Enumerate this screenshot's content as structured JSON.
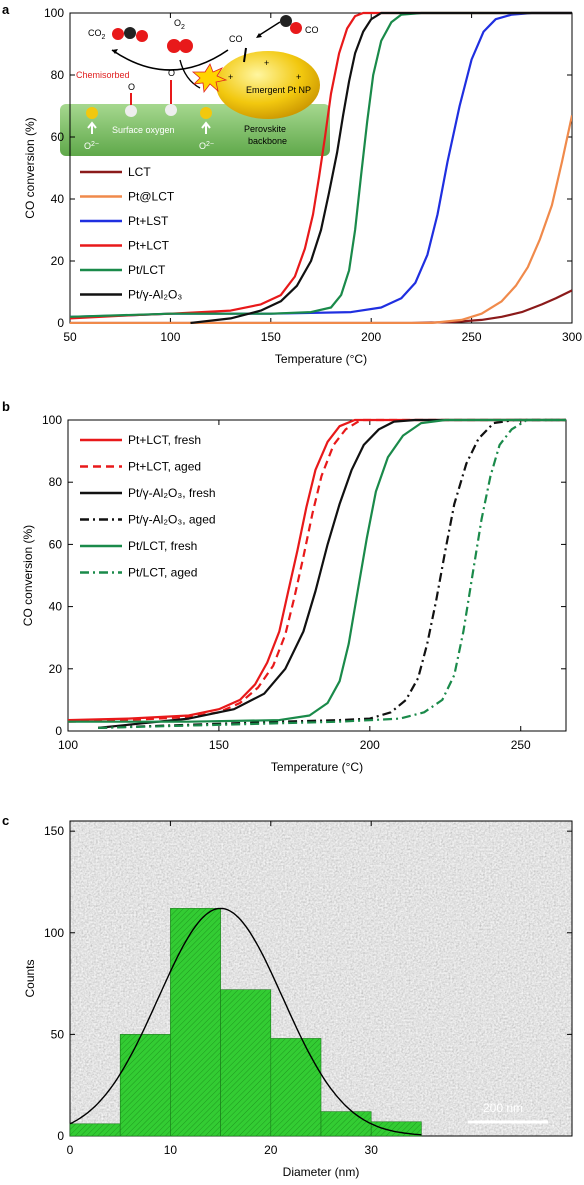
{
  "panels": {
    "a": {
      "letter": "a"
    },
    "b": {
      "letter": "b"
    },
    "c": {
      "letter": "c"
    }
  },
  "schematic": {
    "co2": "CO",
    "co2_sub": "2",
    "o2": "O",
    "o2_sub": "2",
    "co_left": "CO",
    "co_right": "CO",
    "chemisorbed": "Chemisorbed",
    "o_left": "O",
    "o_right": "O",
    "emergent": "Emergent Pt NP",
    "surface_oxygen": "Surface oxygen",
    "perovskite": "Perovskite",
    "backbone": "backbone",
    "o2minus_left": "O",
    "o2minus_right": "O",
    "o2minus_sup": "2−",
    "plus": "+",
    "colors": {
      "nanoparticle": "#f2c80f",
      "backbone": "#7fbf6a",
      "chemisorbed_text": "#e02020",
      "flash": "#ffd400"
    }
  },
  "scale_bar": {
    "label": "200 nm"
  },
  "chart_data": [
    {
      "type": "line",
      "panel": "a",
      "xlabel": "Temperature (°C)",
      "ylabel": "CO conversion (%)",
      "xlim": [
        50,
        300
      ],
      "ylim": [
        0,
        100
      ],
      "xticks": [
        50,
        100,
        150,
        200,
        250,
        300
      ],
      "yticks": [
        0,
        20,
        40,
        60,
        80,
        100
      ],
      "legend_position": "left",
      "series": [
        {
          "name": "LCT",
          "color": "#8b1a1a",
          "dash": "solid",
          "x": [
            50,
            100,
            150,
            200,
            220,
            240,
            255,
            265,
            275,
            285,
            292,
            300
          ],
          "y": [
            0,
            0,
            0,
            0,
            0,
            0.3,
            1.0,
            2.0,
            3.5,
            6.0,
            8.0,
            10.5
          ]
        },
        {
          "name": "Pt@LCT",
          "color": "#f08a4b",
          "dash": "solid",
          "x": [
            50,
            150,
            200,
            230,
            245,
            255,
            265,
            272,
            278,
            284,
            290,
            295,
            300
          ],
          "y": [
            0,
            0,
            0,
            0,
            1,
            3,
            7,
            12,
            18,
            27,
            38,
            52,
            67
          ]
        },
        {
          "name": "Pt+LST",
          "color": "#1f2fe0",
          "dash": "solid",
          "x": [
            50,
            80,
            100,
            150,
            190,
            205,
            215,
            222,
            228,
            233,
            238,
            244,
            250,
            256,
            262,
            270,
            280,
            300
          ],
          "y": [
            2,
            2.5,
            3,
            3,
            3.5,
            5,
            8,
            13,
            22,
            35,
            52,
            70,
            85,
            94,
            98,
            99.5,
            100,
            100
          ]
        },
        {
          "name": "Pt+LCT",
          "color": "#e8191a",
          "dash": "solid",
          "x": [
            50,
            80,
            100,
            130,
            145,
            155,
            162,
            167,
            171,
            174,
            177,
            180,
            184,
            188,
            192,
            196,
            205,
            300
          ],
          "y": [
            1.5,
            2.5,
            3,
            4,
            6,
            9,
            15,
            24,
            35,
            47,
            60,
            74,
            87,
            95,
            99,
            100,
            100,
            100
          ]
        },
        {
          "name": "Pt/LCT",
          "color": "#1a8a4a",
          "dash": "solid",
          "x": [
            50,
            100,
            150,
            170,
            180,
            185,
            189,
            192,
            195,
            198,
            201,
            205,
            210,
            215,
            225,
            300
          ],
          "y": [
            2,
            3,
            3,
            3.5,
            5,
            9,
            17,
            30,
            48,
            65,
            80,
            91,
            97,
            99.5,
            100,
            100
          ]
        },
        {
          "name": "Pt/γ-Al₂O₃",
          "color": "#111111",
          "dash": "solid",
          "x": [
            110,
            130,
            145,
            155,
            163,
            170,
            175,
            179,
            183,
            186,
            189,
            192,
            196,
            200,
            205,
            215,
            300
          ],
          "y": [
            0,
            1.5,
            4,
            7,
            12,
            20,
            30,
            42,
            55,
            67,
            78,
            87,
            94,
            98,
            100,
            100,
            100
          ]
        }
      ]
    },
    {
      "type": "line",
      "panel": "b",
      "xlabel": "Temperature (°C)",
      "ylabel": "CO conversion (%)",
      "xlim": [
        100,
        265
      ],
      "ylim": [
        0,
        100
      ],
      "xticks": [
        100,
        150,
        200,
        250
      ],
      "yticks": [
        0,
        20,
        40,
        60,
        80,
        100
      ],
      "legend_position": "top-left",
      "series": [
        {
          "name": "Pt+LCT, fresh",
          "color": "#e8191a",
          "dash": "solid",
          "x": [
            100,
            120,
            140,
            150,
            157,
            162,
            166,
            170,
            173,
            176,
            179,
            182,
            186,
            190,
            195,
            200,
            265
          ],
          "y": [
            3.5,
            4,
            5,
            7,
            10,
            15,
            22,
            32,
            45,
            58,
            72,
            84,
            93,
            98,
            100,
            100,
            100
          ]
        },
        {
          "name": "Pt+LCT, aged",
          "color": "#e8191a",
          "dash": "dashed",
          "x": [
            100,
            120,
            140,
            150,
            157,
            163,
            168,
            172,
            175,
            178,
            181,
            184,
            188,
            192,
            197,
            202,
            265
          ],
          "y": [
            3,
            3.5,
            4.5,
            6,
            9,
            14,
            21,
            31,
            43,
            56,
            70,
            82,
            92,
            97,
            100,
            100,
            100
          ]
        },
        {
          "name": "Pt/γ-Al₂O₃, fresh",
          "color": "#111111",
          "dash": "solid",
          "x": [
            110,
            125,
            140,
            155,
            165,
            172,
            178,
            182,
            186,
            190,
            194,
            198,
            203,
            208,
            215,
            265
          ],
          "y": [
            1,
            2.5,
            4,
            7,
            12,
            20,
            32,
            45,
            60,
            73,
            84,
            92,
            97,
            99.5,
            100,
            100
          ]
        },
        {
          "name": "Pt/γ-Al₂O₃, aged",
          "color": "#111111",
          "dash": "dashdot",
          "x": [
            110,
            140,
            170,
            190,
            200,
            207,
            212,
            216,
            219,
            222,
            225,
            228,
            232,
            236,
            241,
            248,
            265
          ],
          "y": [
            1,
            2,
            3,
            3.5,
            4,
            6,
            10,
            17,
            28,
            42,
            58,
            73,
            86,
            94,
            99,
            100,
            100
          ]
        },
        {
          "name": "Pt/LCT, fresh",
          "color": "#1a8a4a",
          "dash": "solid",
          "x": [
            100,
            140,
            170,
            180,
            186,
            190,
            193,
            196,
            199,
            202,
            206,
            211,
            217,
            225,
            265
          ],
          "y": [
            3,
            3,
            3.5,
            5,
            9,
            16,
            28,
            45,
            62,
            77,
            88,
            95,
            99,
            100,
            100
          ]
        },
        {
          "name": "Pt/LCT, aged",
          "color": "#1a8a4a",
          "dash": "dashdot",
          "x": [
            110,
            150,
            190,
            210,
            218,
            224,
            228,
            231,
            234,
            237,
            240,
            243,
            247,
            252,
            265
          ],
          "y": [
            1,
            2,
            3,
            4,
            6,
            10,
            18,
            32,
            50,
            68,
            82,
            92,
            97,
            100,
            100
          ]
        }
      ]
    },
    {
      "type": "bar",
      "panel": "c",
      "xlabel": "Diameter (nm)",
      "ylabel": "Counts",
      "xlim": [
        0,
        50
      ],
      "ylim": [
        0,
        155
      ],
      "xticks": [
        0,
        10,
        20,
        30
      ],
      "yticks": [
        0,
        50,
        100,
        150
      ],
      "bar_color": "#33cc33",
      "bins": [
        [
          0,
          5
        ],
        [
          5,
          10
        ],
        [
          10,
          15
        ],
        [
          15,
          20
        ],
        [
          20,
          25
        ],
        [
          25,
          30
        ],
        [
          30,
          35
        ]
      ],
      "values": [
        6,
        50,
        112,
        72,
        48,
        12,
        7
      ],
      "fit_curve": {
        "type": "gaussian",
        "mean": 15,
        "peak": 112,
        "sigma": 6.2,
        "color": "#000000",
        "x_range": [
          0,
          35
        ]
      }
    }
  ]
}
